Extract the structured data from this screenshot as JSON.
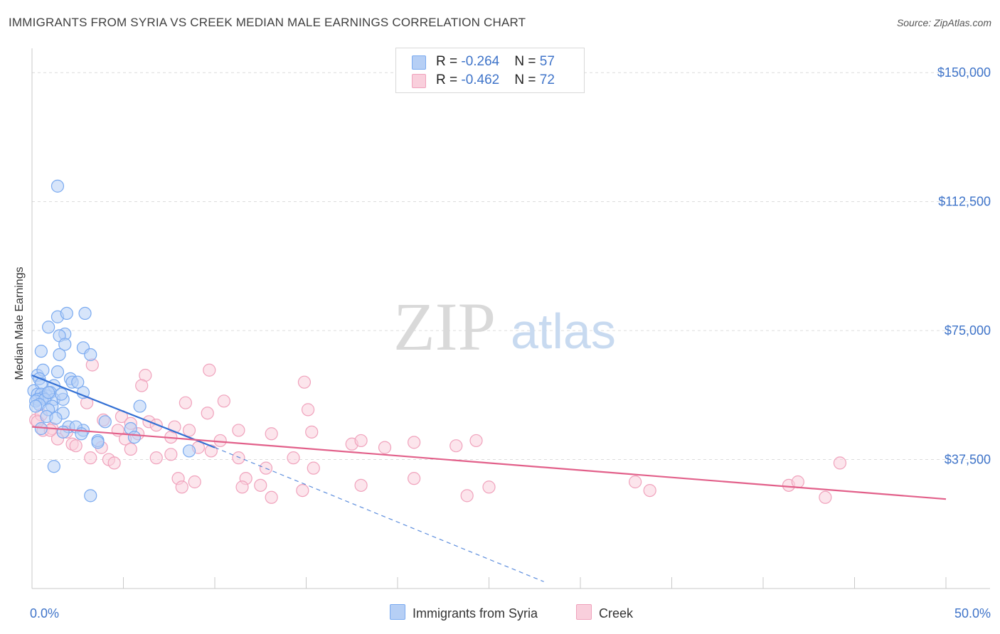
{
  "title": "IMMIGRANTS FROM SYRIA VS CREEK MEDIAN MALE EARNINGS CORRELATION CHART",
  "source": "Source: ZipAtlas.com",
  "watermark": {
    "zip": "ZIP",
    "atlas": "atlas"
  },
  "legend_top": [
    {
      "r_label": "R = ",
      "r_value": "-0.264",
      "n_label": "N = ",
      "n_value": "57"
    },
    {
      "r_label": "R = ",
      "r_value": "-0.462",
      "n_label": "N = ",
      "n_value": "72"
    }
  ],
  "chart_data": {
    "type": "scatter",
    "title": "IMMIGRANTS FROM SYRIA VS CREEK MEDIAN MALE EARNINGS CORRELATION CHART",
    "xlabel": "",
    "ylabel": "Median Male Earnings",
    "xlim": [
      0,
      50
    ],
    "ylim": [
      0,
      155000
    ],
    "x_tick_labels": [
      "0.0%",
      "50.0%"
    ],
    "y_ticks": [
      37500,
      75000,
      112500,
      150000
    ],
    "y_tick_labels": [
      "$37,500",
      "$75,000",
      "$112,500",
      "$150,000"
    ],
    "x_minor_ticks": [
      0,
      5,
      10,
      15,
      20,
      25,
      30,
      35,
      40,
      45,
      50
    ],
    "grid": true,
    "legend_position": "bottom-center",
    "series": [
      {
        "name": "Immigrants from Syria",
        "color": "#7aaaf0",
        "fill": "#b6cff5",
        "line_color": "#3370d4",
        "trend": {
          "x0": 0.0,
          "y0": 62000,
          "x1": 10.0,
          "y1": 41000,
          "dashed_to_x": 28.0,
          "dashed_to_y": 2000
        },
        "points": [
          [
            1.4,
            117000
          ],
          [
            0.5,
            69000
          ],
          [
            1.4,
            79000
          ],
          [
            1.9,
            80000
          ],
          [
            2.9,
            80000
          ],
          [
            0.9,
            76000
          ],
          [
            1.8,
            74000
          ],
          [
            1.5,
            73500
          ],
          [
            1.8,
            71000
          ],
          [
            2.8,
            70000
          ],
          [
            3.2,
            68000
          ],
          [
            1.5,
            68000
          ],
          [
            0.3,
            62000
          ],
          [
            0.6,
            63500
          ],
          [
            1.4,
            63000
          ],
          [
            0.4,
            61000
          ],
          [
            2.1,
            61000
          ],
          [
            2.2,
            60000
          ],
          [
            0.5,
            59500
          ],
          [
            1.2,
            59000
          ],
          [
            0.1,
            57500
          ],
          [
            0.3,
            56500
          ],
          [
            0.5,
            56500
          ],
          [
            0.8,
            56000
          ],
          [
            1.0,
            57000
          ],
          [
            0.6,
            55500
          ],
          [
            1.2,
            55000
          ],
          [
            1.7,
            55000
          ],
          [
            0.3,
            55000
          ],
          [
            0.2,
            54500
          ],
          [
            0.7,
            55000
          ],
          [
            2.8,
            57000
          ],
          [
            1.1,
            53000
          ],
          [
            0.4,
            53500
          ],
          [
            0.9,
            52000
          ],
          [
            1.7,
            51000
          ],
          [
            0.8,
            50000
          ],
          [
            1.3,
            49500
          ],
          [
            5.9,
            53000
          ],
          [
            2.0,
            47000
          ],
          [
            4.0,
            48500
          ],
          [
            2.8,
            46000
          ],
          [
            2.4,
            47000
          ],
          [
            0.5,
            46500
          ],
          [
            1.7,
            45500
          ],
          [
            2.7,
            45000
          ],
          [
            5.4,
            46500
          ],
          [
            5.6,
            44000
          ],
          [
            3.6,
            43000
          ],
          [
            1.2,
            35500
          ],
          [
            8.6,
            40000
          ],
          [
            3.2,
            27000
          ],
          [
            2.5,
            60000
          ],
          [
            0.2,
            53000
          ],
          [
            0.9,
            57000
          ],
          [
            1.6,
            56500
          ],
          [
            3.6,
            42500
          ]
        ]
      },
      {
        "name": "Creek",
        "color": "#f0a2bc",
        "fill": "#f9cfdc",
        "line_color": "#e2608a",
        "trend": {
          "x0": 0.0,
          "y0": 47000,
          "x1": 50.0,
          "y1": 26000
        },
        "points": [
          [
            0.2,
            49000
          ],
          [
            0.6,
            46000
          ],
          [
            1.1,
            46500
          ],
          [
            1.9,
            45500
          ],
          [
            0.5,
            50500
          ],
          [
            3.3,
            65000
          ],
          [
            3.0,
            54000
          ],
          [
            6.2,
            62000
          ],
          [
            6.0,
            59000
          ],
          [
            4.9,
            50000
          ],
          [
            4.7,
            46000
          ],
          [
            5.4,
            48000
          ],
          [
            3.9,
            49000
          ],
          [
            5.8,
            45000
          ],
          [
            6.4,
            48500
          ],
          [
            6.8,
            47500
          ],
          [
            7.6,
            44000
          ],
          [
            7.8,
            47000
          ],
          [
            8.4,
            54000
          ],
          [
            8.6,
            46000
          ],
          [
            9.6,
            51000
          ],
          [
            9.7,
            63500
          ],
          [
            10.5,
            54500
          ],
          [
            10.3,
            43000
          ],
          [
            11.3,
            46000
          ],
          [
            11.7,
            32000
          ],
          [
            11.3,
            38000
          ],
          [
            12.8,
            35000
          ],
          [
            13.1,
            45000
          ],
          [
            14.9,
            60000
          ],
          [
            15.1,
            52000
          ],
          [
            15.3,
            45500
          ],
          [
            14.3,
            38000
          ],
          [
            15.4,
            35000
          ],
          [
            17.5,
            42000
          ],
          [
            18.0,
            43000
          ],
          [
            19.3,
            41000
          ],
          [
            20.9,
            42500
          ],
          [
            23.2,
            41500
          ],
          [
            24.3,
            43000
          ],
          [
            1.4,
            43500
          ],
          [
            2.2,
            42000
          ],
          [
            2.4,
            41500
          ],
          [
            3.2,
            38000
          ],
          [
            3.8,
            41000
          ],
          [
            4.2,
            37500
          ],
          [
            4.5,
            36500
          ],
          [
            5.1,
            43500
          ],
          [
            5.4,
            40500
          ],
          [
            6.8,
            38000
          ],
          [
            7.6,
            39000
          ],
          [
            8.0,
            32000
          ],
          [
            8.2,
            29500
          ],
          [
            8.9,
            31000
          ],
          [
            9.1,
            41000
          ],
          [
            9.8,
            40000
          ],
          [
            11.5,
            29500
          ],
          [
            12.5,
            30000
          ],
          [
            13.1,
            26500
          ],
          [
            14.8,
            28500
          ],
          [
            18.0,
            30000
          ],
          [
            20.9,
            32000
          ],
          [
            23.8,
            27000
          ],
          [
            25.0,
            29500
          ],
          [
            33.0,
            31000
          ],
          [
            33.8,
            28500
          ],
          [
            41.4,
            30000
          ],
          [
            41.9,
            31000
          ],
          [
            43.4,
            26500
          ],
          [
            44.2,
            36500
          ],
          [
            1.0,
            46000
          ],
          [
            0.3,
            48500
          ]
        ]
      }
    ]
  }
}
